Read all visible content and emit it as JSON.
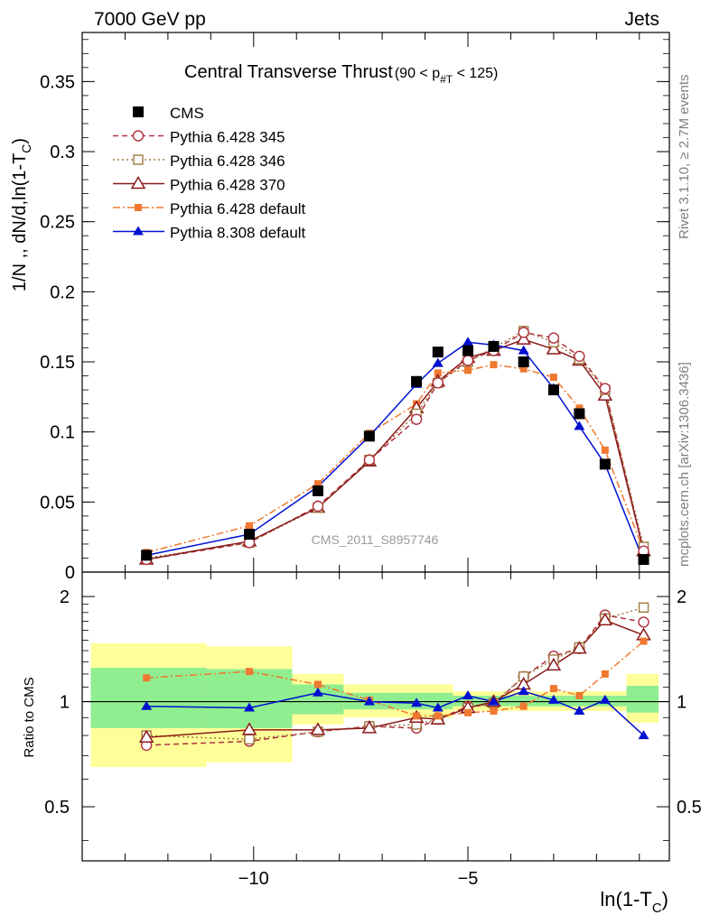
{
  "header": {
    "left": "7000 GeV pp",
    "right": "Jets"
  },
  "side_labels": {
    "rivet": "Rivet 3.1.10, ≥ 2.7M events",
    "mcplots": "mcplots.cern.ch [arXiv:1306.3436]"
  },
  "watermark": "CMS_2011_S8957746",
  "chart_data": [
    {
      "type": "scatter",
      "title": "Central Transverse Thrust",
      "title_cut": "(90 < p",
      "title_cut_sub": "#T",
      "title_cut_end": " < 125)",
      "ylabel": "1/N ,, dN/d,ln(1-T",
      "ylabel_sub": "C",
      "ylabel_end": ")",
      "xlabel": "ln(1-T",
      "xlabel_sub": "C",
      "xlabel_end": ")",
      "xlim": [
        -14.0,
        -0.3
      ],
      "ylim": [
        0,
        0.385
      ],
      "yticks": [
        "0",
        "0.05",
        "0.1",
        "0.15",
        "0.2",
        "0.25",
        "0.3",
        "0.35"
      ],
      "x": [
        -12.5,
        -10.1,
        -8.5,
        -7.3,
        -6.2,
        -5.7,
        -5.0,
        -4.4,
        -3.7,
        -3.0,
        -2.4,
        -1.8,
        -0.9
      ],
      "series": [
        {
          "name": "CMS",
          "color": "#000000",
          "marker": "square-filled",
          "line": "none",
          "values": [
            0.012,
            0.027,
            0.058,
            0.097,
            0.136,
            0.157,
            0.158,
            0.161,
            0.15,
            0.13,
            0.113,
            0.077,
            0.009
          ]
        },
        {
          "name": "Pythia 6.428 345",
          "color": "#b03040",
          "marker": "circle-open",
          "line": "dashed",
          "values": [
            0.009,
            0.021,
            0.047,
            0.08,
            0.109,
            0.135,
            0.151,
            0.158,
            0.171,
            0.167,
            0.154,
            0.131,
            0.015
          ]
        },
        {
          "name": "Pythia 6.428 346",
          "color": "#a07840",
          "marker": "square-open",
          "line": "dotted",
          "values": [
            0.01,
            0.021,
            0.046,
            0.08,
            0.113,
            0.135,
            0.15,
            0.16,
            0.172,
            0.164,
            0.152,
            0.13,
            0.018
          ]
        },
        {
          "name": "Pythia 6.428 370",
          "color": "#8b1a1a",
          "marker": "triangle-open",
          "line": "solid",
          "values": [
            0.009,
            0.022,
            0.046,
            0.079,
            0.117,
            0.136,
            0.153,
            0.158,
            0.166,
            0.159,
            0.151,
            0.126,
            0.015
          ]
        },
        {
          "name": "Pythia 6.428 default",
          "color": "#f07830",
          "marker": "square-filled-small",
          "line": "dashdot",
          "values": [
            0.014,
            0.033,
            0.063,
            0.099,
            0.12,
            0.142,
            0.144,
            0.148,
            0.145,
            0.139,
            0.117,
            0.087,
            0.015
          ]
        },
        {
          "name": "Pythia 8.308 default",
          "color": "#0010d0",
          "marker": "triangle-filled",
          "line": "solid",
          "values": [
            0.012,
            0.027,
            0.061,
            0.097,
            0.134,
            0.149,
            0.164,
            0.162,
            0.158,
            0.131,
            0.104,
            0.077,
            0.008
          ]
        }
      ]
    },
    {
      "type": "scatter",
      "ylabel": "Ratio to CMS",
      "xlabel": "ln(1-T",
      "xlabel_sub": "C",
      "xlabel_end": ")",
      "xlim": [
        -14.0,
        -0.3
      ],
      "ylim": [
        0.35,
        2.35
      ],
      "yticks": [
        "0.5",
        "1",
        "2"
      ],
      "ytick_values": [
        0.5,
        1,
        2
      ],
      "xticks": [
        "−10",
        "−5"
      ],
      "xtick_values": [
        -10,
        -5
      ],
      "uncertainty_bands": [
        {
          "x0": -13.8,
          "x1": -11.1,
          "green": [
            0.84,
            1.25
          ],
          "yellow": [
            0.65,
            1.47
          ]
        },
        {
          "x0": -11.1,
          "x1": -9.1,
          "green": [
            0.84,
            1.24
          ],
          "yellow": [
            0.67,
            1.44
          ]
        },
        {
          "x0": -9.1,
          "x1": -7.9,
          "green": [
            0.92,
            1.12
          ],
          "yellow": [
            0.86,
            1.2
          ]
        },
        {
          "x0": -7.9,
          "x1": -5.35,
          "green": [
            0.95,
            1.06
          ],
          "yellow": [
            0.9,
            1.12
          ]
        },
        {
          "x0": -5.35,
          "x1": -1.3,
          "green": [
            0.97,
            1.04
          ],
          "yellow": [
            0.94,
            1.07
          ]
        },
        {
          "x0": -1.3,
          "x1": -0.55,
          "green": [
            0.93,
            1.11
          ],
          "yellow": [
            0.87,
            1.2
          ]
        }
      ],
      "series": [
        {
          "name": "Pythia 6.428 345",
          "values": [
            0.75,
            0.77,
            0.82,
            0.85,
            0.84,
            0.89,
            0.97,
            0.98,
            1.18,
            1.35,
            1.42,
            1.77,
            1.69
          ]
        },
        {
          "name": "Pythia 6.428 346",
          "values": [
            0.8,
            0.78,
            0.82,
            0.85,
            0.86,
            0.89,
            0.96,
            0.99,
            1.18,
            1.32,
            1.43,
            1.73,
            1.86
          ]
        },
        {
          "name": "Pythia 6.428 370",
          "values": [
            0.79,
            0.83,
            0.83,
            0.84,
            0.9,
            0.89,
            0.96,
            1.0,
            1.12,
            1.27,
            1.42,
            1.71,
            1.55
          ]
        },
        {
          "name": "Pythia 6.428 default",
          "values": [
            1.17,
            1.22,
            1.12,
            1.01,
            0.91,
            0.91,
            0.93,
            0.94,
            0.97,
            1.09,
            1.04,
            1.2,
            1.49
          ]
        },
        {
          "name": "Pythia 8.308 default",
          "values": [
            0.97,
            0.96,
            1.06,
            1.0,
            0.99,
            0.96,
            1.04,
            1.0,
            1.07,
            1.01,
            0.94,
            1.01,
            0.8
          ]
        }
      ]
    }
  ]
}
